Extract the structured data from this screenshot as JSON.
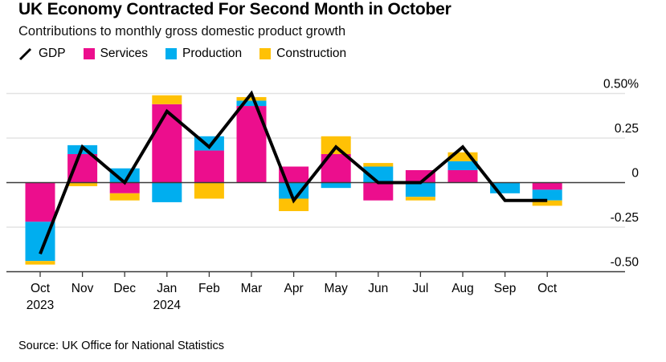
{
  "header": {
    "title": "UK Economy Contracted For Second Month in October",
    "subtitle": "Contributions to monthly gross domestic product growth"
  },
  "legend": {
    "items": [
      {
        "label": "GDP",
        "type": "line",
        "color": "#000000"
      },
      {
        "label": "Services",
        "type": "swatch",
        "color": "#EC0E8D"
      },
      {
        "label": "Production",
        "type": "swatch",
        "color": "#00AEEF"
      },
      {
        "label": "Construction",
        "type": "swatch",
        "color": "#FFC105"
      }
    ]
  },
  "chart_data": {
    "type": "bar+line",
    "stacked": true,
    "title": "UK Economy Contracted For Second Month in October",
    "subtitle": "Contributions to monthly gross domestic product growth",
    "unit": "percentage points",
    "categories": [
      "Oct",
      "Nov",
      "Dec",
      "Jan",
      "Feb",
      "Mar",
      "Apr",
      "May",
      "Jun",
      "Jul",
      "Aug",
      "Sep",
      "Oct"
    ],
    "category_years": [
      "2023",
      "",
      "",
      "2024",
      "",
      "",
      "",
      "",
      "",
      "",
      "",
      "",
      ""
    ],
    "series": [
      {
        "name": "Services",
        "color": "#EC0E8D",
        "values": [
          -0.22,
          0.16,
          -0.06,
          0.44,
          0.18,
          0.43,
          0.09,
          0.16,
          -0.1,
          0.07,
          0.07,
          0.0,
          -0.04
        ]
      },
      {
        "name": "Production",
        "color": "#00AEEF",
        "values": [
          -0.22,
          0.05,
          0.08,
          -0.11,
          0.08,
          0.03,
          -0.09,
          -0.03,
          0.09,
          -0.08,
          0.05,
          -0.06,
          -0.06
        ]
      },
      {
        "name": "Construction",
        "color": "#FFC105",
        "values": [
          -0.02,
          -0.02,
          -0.04,
          0.05,
          -0.09,
          0.02,
          -0.07,
          0.1,
          0.02,
          -0.02,
          0.05,
          0.0,
          -0.03
        ]
      }
    ],
    "line_series": {
      "name": "GDP",
      "color": "#000000",
      "values": [
        -0.4,
        0.2,
        0.0,
        0.4,
        0.2,
        0.5,
        -0.1,
        0.2,
        0.0,
        0.0,
        0.2,
        -0.1,
        -0.1
      ]
    },
    "y_axis": {
      "range": [
        -0.5,
        0.5
      ],
      "ticks": [
        0.5,
        0.25,
        0,
        -0.25,
        -0.5
      ],
      "tick_labels": [
        "0.50%",
        "0.25",
        "0",
        "-0.25",
        "-0.50"
      ],
      "grid": true,
      "grid_color": "#e3e3e3",
      "axis_color": "#3a3a3a"
    },
    "legend_position": "top"
  },
  "footer": {
    "source": "Source: UK Office for National Statistics"
  }
}
